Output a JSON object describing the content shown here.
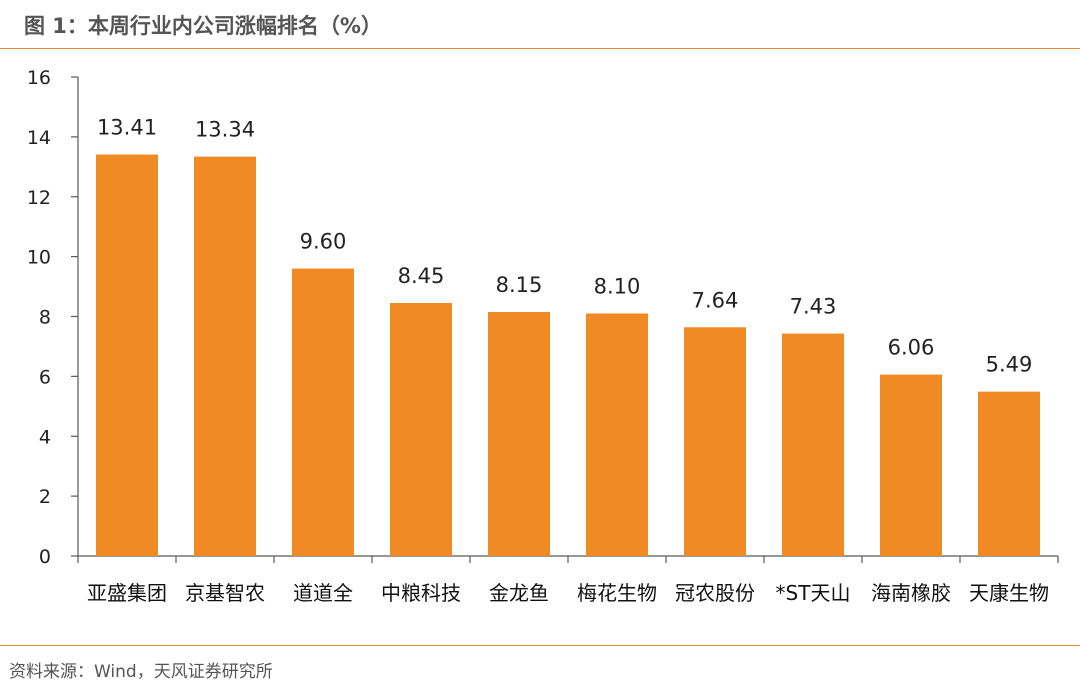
{
  "header": {
    "title": "图 1：本周行业内公司涨幅排名（%）"
  },
  "footer": {
    "source": "资料来源：Wind，天风证券研究所"
  },
  "colors": {
    "bar": "#F08A24",
    "rule": "#E48A2E",
    "axis": "#595959"
  },
  "chart_data": {
    "type": "bar",
    "title": "图 1：本周行业内公司涨幅排名（%）",
    "xlabel": "",
    "ylabel": "",
    "categories": [
      "亚盛集团",
      "京基智农",
      "道道全",
      "中粮科技",
      "金龙鱼",
      "梅花生物",
      "冠农股份",
      "*ST天山",
      "海南橡胶",
      "天康生物"
    ],
    "values": [
      13.41,
      13.34,
      9.6,
      8.45,
      8.15,
      8.1,
      7.64,
      7.43,
      6.06,
      5.49
    ],
    "data_labels": [
      "13.41",
      "13.34",
      "9.60",
      "8.45",
      "8.15",
      "8.10",
      "7.64",
      "7.43",
      "6.06",
      "5.49"
    ],
    "ylim": [
      0,
      16
    ],
    "yticks": [
      0,
      2,
      4,
      6,
      8,
      10,
      12,
      14,
      16
    ],
    "grid": false,
    "legend": "none"
  }
}
